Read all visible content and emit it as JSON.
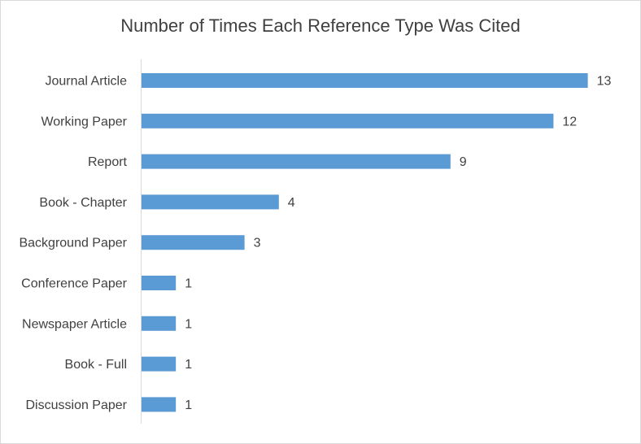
{
  "chart_data": {
    "type": "bar",
    "orientation": "horizontal",
    "title": "Number of Times Each Reference Type Was Cited",
    "categories": [
      "Journal Article",
      "Working Paper",
      "Report",
      "Book - Chapter",
      "Background Paper",
      "Conference Paper",
      "Newspaper Article",
      "Book - Full",
      "Discussion Paper"
    ],
    "values": [
      13,
      12,
      9,
      4,
      3,
      1,
      1,
      1,
      1
    ],
    "xlim": [
      0,
      14
    ],
    "grid": false,
    "legend": "none",
    "bar_color": "#5b9bd5",
    "data_labels": true
  }
}
